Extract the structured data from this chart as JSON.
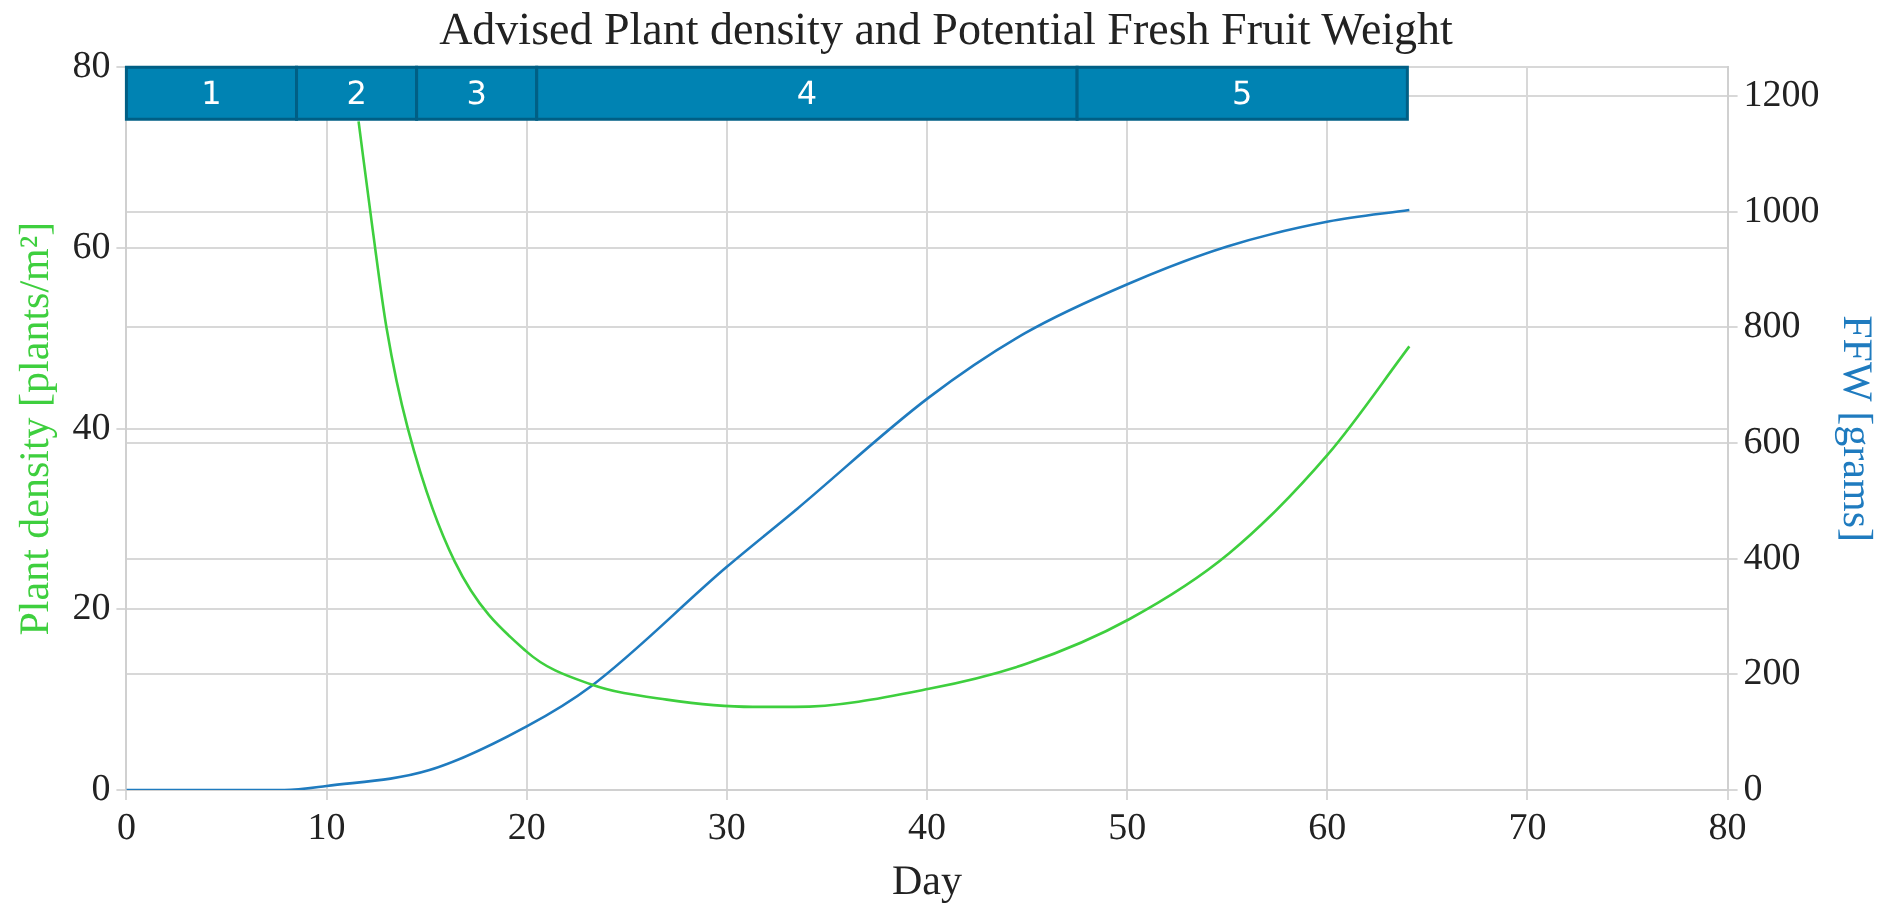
{
  "chart_data": {
    "type": "line",
    "title": "Advised Plant density and Potential Fresh Fruit Weight",
    "xlabel": "Day",
    "ylabel": "Plant density [plants/m²]",
    "y2label": "FFW [grams]",
    "series": [
      {
        "color": "#3ecf3e",
        "x": [
          11.6,
          12.3,
          13.0,
          14.05,
          16.4,
          19.95,
          23.2,
          27,
          31.3,
          33.4,
          40.1,
          45,
          50.1,
          55.1,
          60.05,
          64.1
        ],
        "values": [
          74,
          62.1,
          51.1,
          40.1,
          25.3,
          15.4,
          11.7,
          10,
          9.2,
          9.2,
          11.2,
          14,
          18.9,
          26.2,
          37.2,
          49.1
        ]
      },
      {
        "color": "#1f7bbf",
        "axis": "y2",
        "x": [
          0,
          7.9,
          10,
          15.1,
          20,
          23.2,
          30,
          33.4,
          40.1,
          44.9,
          50.1,
          55,
          60.05,
          64.1
        ],
        "values": [
          0,
          0,
          7,
          34,
          110,
          179,
          386,
          483,
          679,
          790,
          876,
          940,
          983,
          1003
        ]
      }
    ],
    "xlim": [
      0,
      80
    ],
    "xticks": [
      0,
      10,
      20,
      30,
      40,
      50,
      60,
      70,
      80
    ],
    "ylim": [
      0,
      80
    ],
    "yticks": [
      0,
      20,
      40,
      60,
      80
    ],
    "y2lim": [
      0,
      1250
    ],
    "y2ticks": [
      0,
      200,
      400,
      600,
      800,
      1000,
      1200
    ],
    "bands": [
      {
        "axis": "x",
        "from": 0,
        "to": 8.5,
        "label": "1",
        "color": "#0083b3"
      },
      {
        "axis": "x",
        "from": 8.5,
        "to": 14.5,
        "label": "2",
        "color": "#0083b3"
      },
      {
        "axis": "x",
        "from": 14.5,
        "to": 20.5,
        "label": "3",
        "color": "#0083b3"
      },
      {
        "axis": "x",
        "from": 20.5,
        "to": 47.5,
        "label": "4",
        "color": "#0083b3"
      },
      {
        "axis": "x",
        "from": 47.5,
        "to": 64,
        "label": "5",
        "color": "#0083b3"
      }
    ],
    "grid": true,
    "legend": false,
    "marker": "none",
    "line_style": "solid"
  }
}
